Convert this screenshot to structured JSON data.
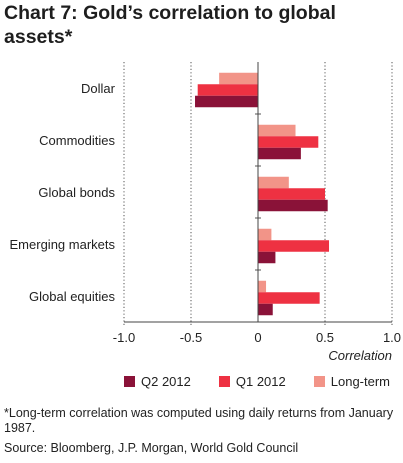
{
  "chart_data": {
    "type": "bar",
    "orientation": "horizontal",
    "title": "Chart 7: Gold’s correlation to global assets*",
    "categories": [
      "Dollar",
      "Commodities",
      "Global bonds",
      "Emerging markets",
      "Global equities"
    ],
    "series": [
      {
        "name": "Long-term",
        "color": "#f29488",
        "values": [
          -0.29,
          0.28,
          0.23,
          0.1,
          0.06
        ]
      },
      {
        "name": "Q1 2012",
        "color": "#ee3142",
        "values": [
          -0.45,
          0.45,
          0.5,
          0.53,
          0.46
        ]
      },
      {
        "name": "Q2 2012",
        "color": "#8a1238",
        "values": [
          -0.47,
          0.32,
          0.52,
          0.13,
          0.11
        ]
      }
    ],
    "xlim": [
      -1.0,
      1.0
    ],
    "xticks": [
      -1.0,
      -0.5,
      0,
      0.5,
      1.0
    ],
    "xtick_labels": [
      "-1.0",
      "-0.5",
      "0",
      "0.5",
      "1.0"
    ],
    "xlabel": "Correlation",
    "gridlines": "dotted vertical at -1.0, -0.5, 0.5, 1.0",
    "legend": {
      "placement": "bottom",
      "order": [
        "Q2 2012",
        "Q1 2012",
        "Long-term"
      ]
    }
  },
  "footnote": "*Long-term correlation was computed using daily returns from January 1987.",
  "source": "Source: Bloomberg, J.P. Morgan, World Gold Council"
}
